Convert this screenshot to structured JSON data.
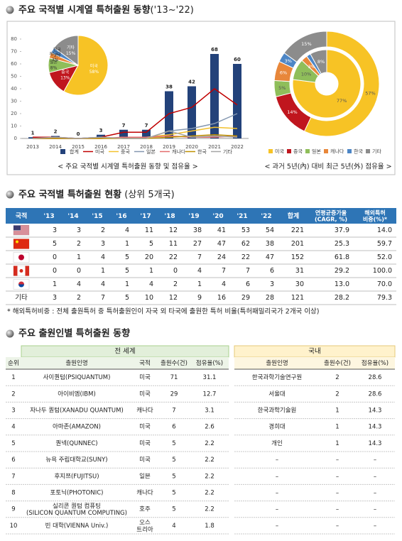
{
  "section1": {
    "title": "주요 국적별 시계열 특허출원 동향",
    "title_suffix": "('13~'22)"
  },
  "chart_data": [
    {
      "type": "bar-line",
      "caption": "< 주요 국적별 시계열 특허출원 동향 및 점유율 >",
      "categories": [
        "2013",
        "2014",
        "2015",
        "2016",
        "2017",
        "2018",
        "2019",
        "2020",
        "2021",
        "2022"
      ],
      "series": [
        {
          "name": "합계",
          "type": "bar",
          "color": "#23427a",
          "values": [
            1,
            2,
            0,
            3,
            7,
            7,
            38,
            42,
            68,
            60
          ]
        },
        {
          "name": "미국",
          "type": "line",
          "color": "#c00000",
          "values": [
            1,
            1,
            0,
            1,
            5,
            5,
            20,
            25,
            40,
            27
          ]
        },
        {
          "name": "중국",
          "type": "line",
          "color": "#f2c12e",
          "values": [
            0,
            0,
            0,
            0,
            1,
            1,
            3,
            6,
            9,
            8
          ]
        },
        {
          "name": "일본",
          "type": "line",
          "color": "#8497b0",
          "values": [
            0,
            0,
            0,
            1,
            0,
            0,
            6,
            8,
            12,
            20
          ]
        },
        {
          "name": "캐나다",
          "type": "line",
          "color": "#e46c6c",
          "values": [
            0,
            0,
            0,
            0,
            1,
            1,
            2,
            1,
            1,
            2
          ]
        },
        {
          "name": "한국",
          "type": "line",
          "color": "#bf9000",
          "values": [
            0,
            0,
            0,
            0,
            0,
            0,
            1,
            2,
            3,
            2
          ]
        },
        {
          "name": "기타",
          "type": "line",
          "color": "#a5a5a5",
          "values": [
            0,
            1,
            0,
            1,
            0,
            0,
            6,
            1,
            2,
            1
          ]
        }
      ],
      "ylim": [
        0,
        80
      ],
      "yticks": [
        0,
        10,
        20,
        30,
        40,
        50,
        60,
        70,
        80
      ]
    },
    {
      "type": "pie",
      "categories": [
        "미국",
        "중국",
        "일본",
        "캐나다",
        "한국",
        "기타"
      ],
      "values": [
        58,
        13,
        8,
        3,
        3,
        15
      ],
      "value_labels": [
        "58%",
        "13%",
        "8%",
        "3%",
        "3%",
        "15%"
      ],
      "colors": [
        "#f7c325",
        "#c0161e",
        "#8fbe5a",
        "#e8873a",
        "#4d86c6",
        "#8c8c8c"
      ]
    },
    {
      "type": "donut",
      "caption": "< 과거 5년(內) 대비 최근 5년(外) 점유율 >",
      "categories": [
        "미국",
        "중국",
        "일본",
        "캐나다",
        "한국",
        "기타"
      ],
      "colors": [
        "#f7c325",
        "#c0161e",
        "#8fbe5a",
        "#e8873a",
        "#4d86c6",
        "#8c8c8c"
      ],
      "inner": {
        "values": [
          77,
          0,
          10,
          3,
          2,
          8
        ],
        "value_labels": [
          "77%",
          null,
          "10%",
          "3%",
          null,
          "8%"
        ]
      },
      "outer": {
        "values": [
          57,
          14,
          5,
          6,
          3,
          15
        ],
        "value_labels": [
          "57%",
          "14%",
          "5%",
          "6%",
          "3%",
          "15%"
        ]
      }
    }
  ],
  "table1": {
    "title": "주요 국적별 특허출원 현황",
    "title_suffix": " (상위 5개국)",
    "header": [
      [
        "국적"
      ],
      [
        "'13"
      ],
      [
        "'14"
      ],
      [
        "'15"
      ],
      [
        "'16"
      ],
      [
        "'17"
      ],
      [
        "'18"
      ],
      [
        "'19"
      ],
      [
        "'20"
      ],
      [
        "'21"
      ],
      [
        "'22"
      ],
      [
        "합계"
      ],
      [
        "연평균증가율",
        "(CAGR, %)"
      ],
      [
        "해외특허",
        "비중(%)*"
      ]
    ],
    "rows": [
      {
        "country": null,
        "cells": [
          3,
          3,
          2,
          4,
          11,
          12,
          38,
          41,
          53,
          54,
          221,
          37.9,
          "14.0"
        ]
      },
      {
        "country": null,
        "cells": [
          5,
          2,
          3,
          1,
          5,
          11,
          27,
          47,
          62,
          38,
          201,
          25.3,
          59.7
        ]
      },
      {
        "country": null,
        "cells": [
          0,
          1,
          4,
          5,
          20,
          22,
          7,
          24,
          22,
          47,
          152,
          61.8,
          "52.0"
        ]
      },
      {
        "country": null,
        "cells": [
          0,
          0,
          1,
          5,
          1,
          0,
          4,
          7,
          7,
          6,
          31,
          29.2,
          "100.0"
        ]
      },
      {
        "country": null,
        "cells": [
          1,
          4,
          4,
          1,
          4,
          2,
          1,
          4,
          6,
          3,
          30,
          "13.0",
          "70.0"
        ]
      },
      {
        "country": "기타",
        "cells": [
          3,
          2,
          7,
          5,
          10,
          12,
          9,
          16,
          29,
          28,
          121,
          28.2,
          79.3
        ]
      }
    ],
    "footnote": "* 해외특허비중 : 전체 출원특허 중 특허출원인이 자국 외 타국에 출원한 특허 비율(특허패밀리국가 2개국 이상)"
  },
  "table2": {
    "title": "주요 출원인별 특허출원 동향",
    "group_world": "전 세계",
    "group_korea": "국내",
    "header": [
      "순위",
      "출원인명",
      "국적",
      "출원수(건)",
      "점유율(%)",
      "출원인명",
      "출원수(건)",
      "점유율(%)"
    ],
    "rows": [
      [
        1,
        "사이퀀텀(PSIQUANTUM)",
        "미국",
        71,
        31.1,
        "한국과학기술연구원",
        2,
        28.6
      ],
      [
        2,
        "아이비엠(IBM)",
        "미국",
        29,
        12.7,
        "서울대",
        2,
        28.6
      ],
      [
        3,
        "자나두 퀀텀(XANADU QUANTUM)",
        "캐나다",
        7,
        3.1,
        "한국과학기술원",
        1,
        14.3
      ],
      [
        4,
        "아마존(AMAZON)",
        "미국",
        6,
        2.6,
        "경희대",
        1,
        14.3
      ],
      [
        5,
        "퀀넥(QUNNEC)",
        "미국",
        5,
        2.2,
        "개인",
        1,
        14.3
      ],
      [
        6,
        "뉴욕 주립대학교(SUNY)",
        "미국",
        5,
        2.2,
        "–",
        "–",
        "–"
      ],
      [
        7,
        "후지쯔(FUJITSU)",
        "일본",
        5,
        2.2,
        "–",
        "–",
        "–"
      ],
      [
        8,
        "포토닉(PHOTONIC)",
        "캐나다",
        5,
        2.2,
        "–",
        "–",
        "–"
      ],
      [
        9,
        [
          "실리콘 퀀텀 컴퓨팅",
          "(SILICON QUANTUM COMPUTING)"
        ],
        "호주",
        5,
        2.2,
        "–",
        "–",
        "–"
      ],
      [
        10,
        "빈 대학(VIENNA Univ.)",
        [
          "오스",
          "트리아"
        ],
        4,
        1.8,
        "–",
        "–",
        "–"
      ]
    ]
  }
}
